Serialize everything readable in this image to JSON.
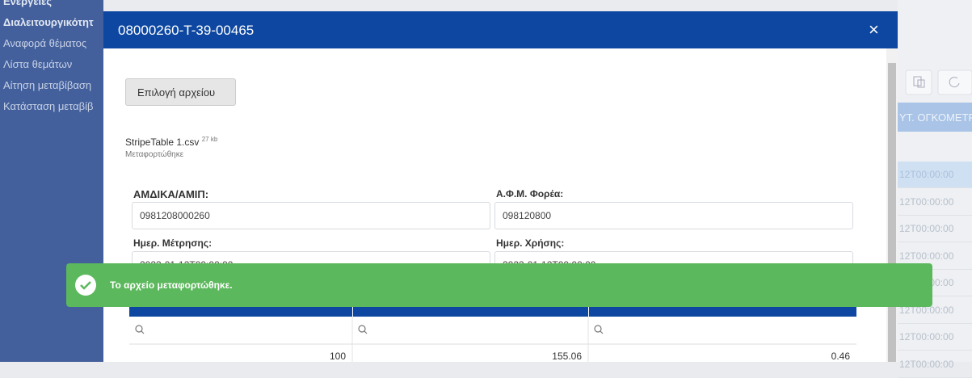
{
  "sidebar": {
    "items": [
      "Ενεργειες",
      "Διαλειτουργικότητ",
      "Αναφορά θέματος",
      "Λίστα θεμάτων",
      "Αίτηση μεταβίβαση",
      "Κατάσταση μεταβίβ"
    ]
  },
  "background": {
    "column_header": "ΥΤ. ΟΓΚΟΜΕΤΡ",
    "rows": [
      "12T00:00:00",
      "12T00:00:00",
      "12T00:00:00",
      "12T00:00:00",
      "12T00:00:00",
      "12T00:00:00",
      "12T00:00:00",
      "12T00:00:00"
    ]
  },
  "modal": {
    "title": "08000260-T-39-00465",
    "close": "×",
    "button": "Επιλογή αρχείου",
    "file": {
      "name": "StripeTable 1.csv",
      "size": "27 kb",
      "status": "Μεταφορτώθηκε"
    },
    "fields": [
      {
        "label": "ΑΜΔΙΚΑ/ΑΜΙΠ:",
        "value": "0981208000260"
      },
      {
        "label": "Α.Φ.Μ. Φορέα:",
        "value": "098120800"
      },
      {
        "label": "Ημερ. Μέτρησης:",
        "value": "2023-01-12T00:00:00"
      },
      {
        "label": "Ημερ. Χρήσης:",
        "value": "2023-01-12T00:00:00"
      }
    ],
    "table": {
      "rows": [
        [
          "100",
          "155.06",
          "0.46"
        ]
      ]
    }
  },
  "toast": {
    "message": "Το αρχείο μεταφορτώθηκε."
  }
}
